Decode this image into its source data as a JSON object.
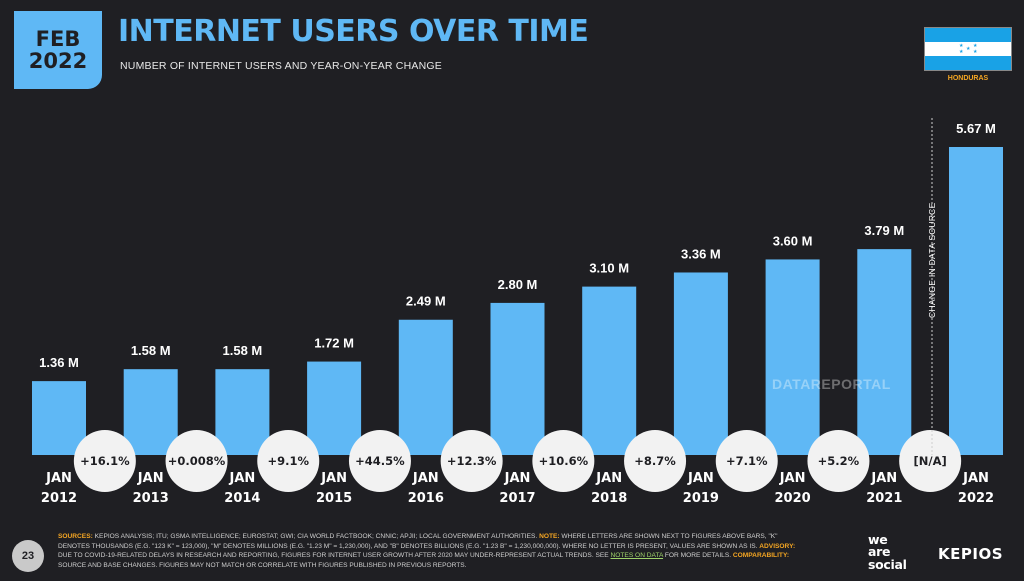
{
  "header": {
    "date_month": "FEB",
    "date_year": "2022",
    "title": "INTERNET USERS OVER TIME",
    "subtitle": "NUMBER OF INTERNET USERS AND YEAR-ON-YEAR CHANGE",
    "country": "HONDURAS"
  },
  "colors": {
    "background": "#1f1f23",
    "bar": "#5fb8f5",
    "accent": "#f5a623",
    "circle": "#f2f2f2"
  },
  "chart_data": {
    "type": "bar",
    "title": "INTERNET USERS OVER TIME",
    "subtitle": "NUMBER OF INTERNET USERS AND YEAR-ON-YEAR CHANGE",
    "categories": [
      "JAN 2012",
      "JAN 2013",
      "JAN 2014",
      "JAN 2015",
      "JAN 2016",
      "JAN 2017",
      "JAN 2018",
      "JAN 2019",
      "JAN 2020",
      "JAN 2021",
      "JAN 2022"
    ],
    "category_lines": [
      [
        "JAN",
        "2012"
      ],
      [
        "JAN",
        "2013"
      ],
      [
        "JAN",
        "2014"
      ],
      [
        "JAN",
        "2015"
      ],
      [
        "JAN",
        "2016"
      ],
      [
        "JAN",
        "2017"
      ],
      [
        "JAN",
        "2018"
      ],
      [
        "JAN",
        "2019"
      ],
      [
        "JAN",
        "2020"
      ],
      [
        "JAN",
        "2021"
      ],
      [
        "JAN",
        "2022"
      ]
    ],
    "values": [
      1.36,
      1.58,
      1.58,
      1.72,
      2.49,
      2.8,
      3.1,
      3.36,
      3.6,
      3.79,
      5.67
    ],
    "value_labels": [
      "1.36 M",
      "1.58 M",
      "1.58 M",
      "1.72 M",
      "2.49 M",
      "2.80 M",
      "3.10 M",
      "3.36 M",
      "3.60 M",
      "3.79 M",
      "5.67 M"
    ],
    "unit": "M",
    "yoy_changes": [
      "+16.1%",
      "+0.008%",
      "+9.1%",
      "+44.5%",
      "+12.3%",
      "+10.6%",
      "+8.7%",
      "+7.1%",
      "+5.2%",
      "[N/A]"
    ],
    "annotation": "CHANGE IN DATA SOURCE",
    "ylim": [
      0,
      5.67
    ],
    "grid": false
  },
  "watermark": "DATAREPORTAL",
  "footer": {
    "page_number": "23",
    "sources_label": "SOURCES:",
    "sources_text": " KEPIOS ANALYSIS; ITU; GSMA INTELLIGENCE; EUROSTAT; GWI; CIA WORLD FACTBOOK; CNNIC; APJII; LOCAL GOVERNMENT AUTHORITIES. ",
    "note_label": "NOTE:",
    "note_text": " WHERE LETTERS ARE SHOWN NEXT TO FIGURES ABOVE BARS, \"K\" DENOTES THOUSANDS (E.G. \"123 K\" = 123,000), \"M\" DENOTES MILLIONS (E.G. \"1.23 M\" = 1,230,000), AND \"B\" DENOTES BILLIONS (E.G. \"1.23 B\" = 1,230,000,000). WHERE NO LETTER IS PRESENT, VALUES ARE SHOWN AS IS. ",
    "advisory_label": "ADVISORY:",
    "advisory_text": " DUE TO COVID-19-RELATED DELAYS IN RESEARCH AND REPORTING, FIGURES FOR INTERNET USER GROWTH AFTER 2020 MAY UNDER-REPRESENT ACTUAL TRENDS. SEE ",
    "notes_link": "NOTES ON DATA",
    "after_link": " FOR MORE DETAILS. ",
    "comparability_label": "COMPARABILITY:",
    "comparability_text": " SOURCE AND BASE CHANGES. FIGURES MAY NOT MATCH OR CORRELATE WITH FIGURES PUBLISHED IN PREVIOUS REPORTS.",
    "brand_was": [
      "we",
      "are",
      "social"
    ],
    "brand_kepios": "KEPIOS"
  }
}
